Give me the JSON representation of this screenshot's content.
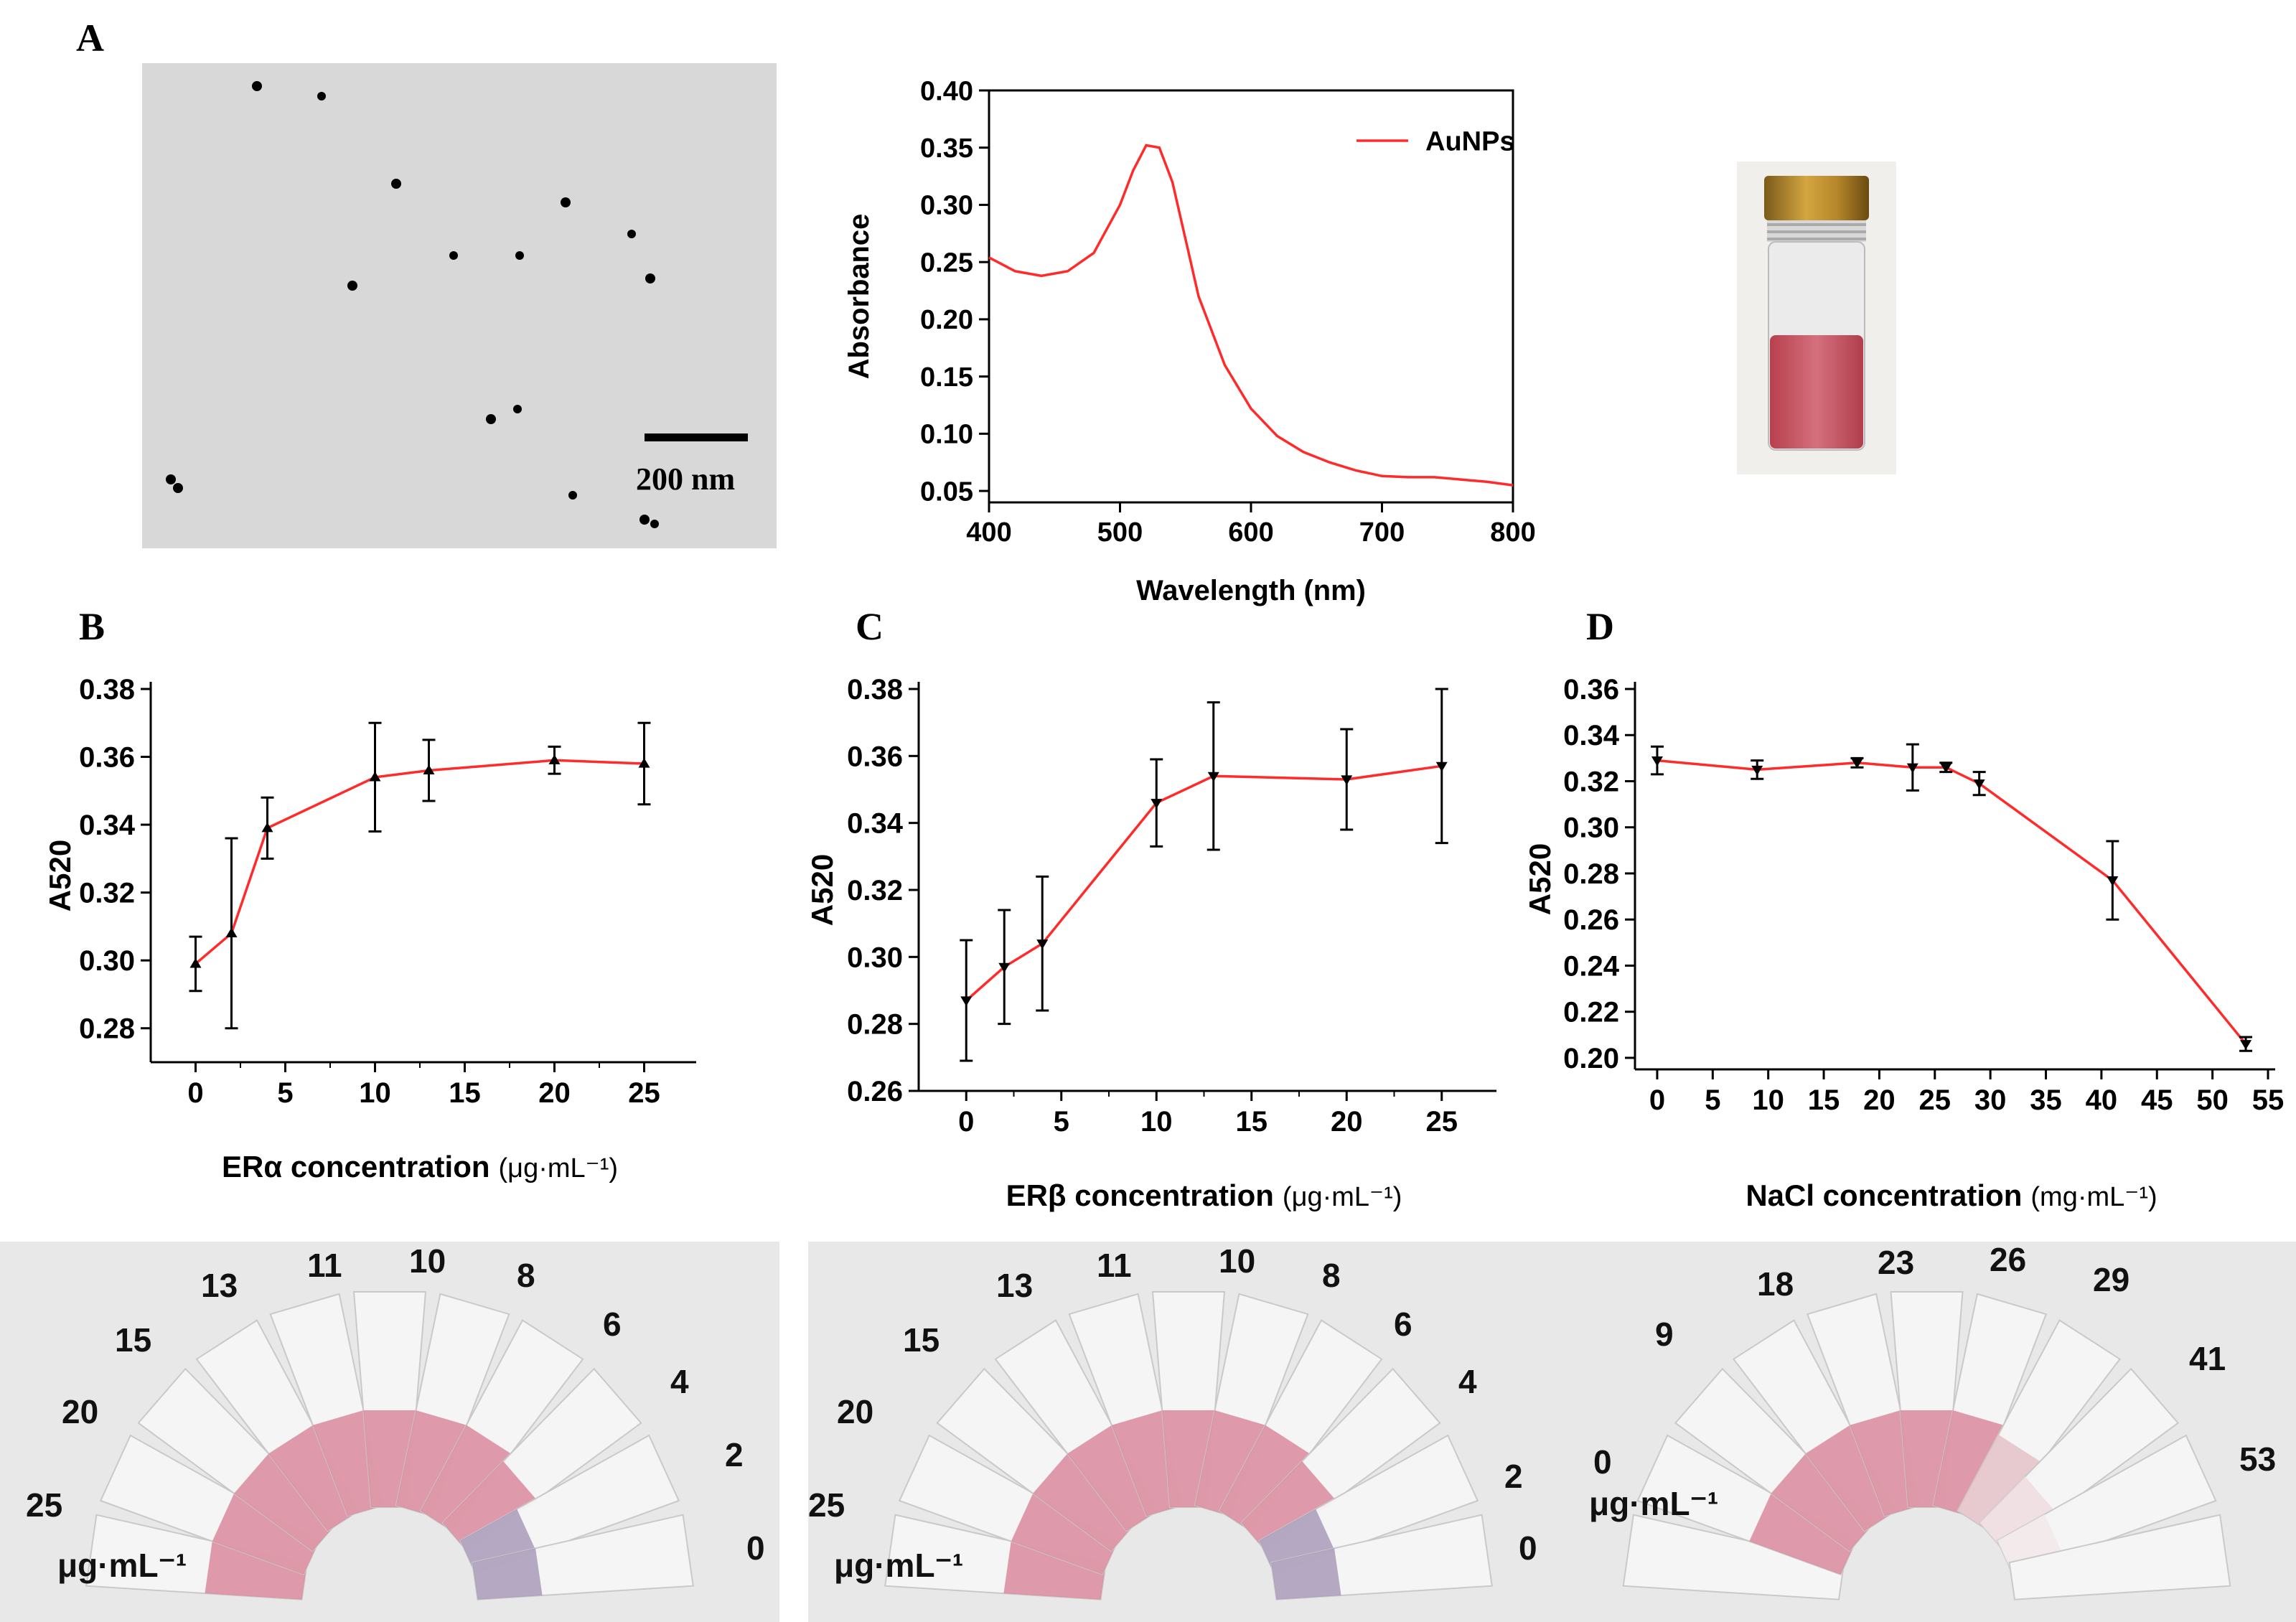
{
  "panels": {
    "A": "A",
    "B": "B",
    "C": "C",
    "D": "D"
  },
  "tem": {
    "scale_label": "200 nm"
  },
  "colors": {
    "line": "#ff2a2a",
    "axis": "#000000",
    "tube_pink": "#d98a9c",
    "tube_purple": "#a89ab8"
  },
  "chart_data": [
    {
      "id": "uv-vis",
      "type": "line",
      "title": "",
      "xlabel": "Wavelength (nm)",
      "ylabel": "Absorbance",
      "xlim": [
        400,
        800
      ],
      "ylim": [
        0.04,
        0.4
      ],
      "xticks": [
        400,
        500,
        600,
        700,
        800
      ],
      "yticks": [
        0.05,
        0.1,
        0.15,
        0.2,
        0.25,
        0.3,
        0.35,
        0.4
      ],
      "ytick_labels": [
        "0.05",
        "0.10",
        "0.15",
        "0.20",
        "0.25",
        "0.30",
        "0.35",
        "0.40"
      ],
      "legend": "top-right",
      "series": [
        {
          "name": "AuNPs",
          "x": [
            400,
            420,
            440,
            460,
            480,
            500,
            510,
            520,
            530,
            540,
            550,
            560,
            580,
            600,
            620,
            640,
            660,
            680,
            700,
            720,
            740,
            760,
            780,
            800
          ],
          "y": [
            0.254,
            0.242,
            0.238,
            0.242,
            0.258,
            0.3,
            0.33,
            0.352,
            0.35,
            0.32,
            0.27,
            0.22,
            0.16,
            0.122,
            0.098,
            0.084,
            0.075,
            0.068,
            0.063,
            0.062,
            0.062,
            0.06,
            0.058,
            0.055
          ]
        }
      ]
    },
    {
      "id": "era",
      "type": "line",
      "xlabel": "ERα concentration",
      "xunit": "(μg·mL⁻¹)",
      "ylabel": "A520",
      "xlim": [
        -2.5,
        27.5
      ],
      "ylim": [
        0.27,
        0.38
      ],
      "xticks": [
        0,
        5,
        10,
        15,
        20,
        25
      ],
      "yticks": [
        0.28,
        0.3,
        0.32,
        0.34,
        0.36,
        0.38
      ],
      "marker": "triangle-up",
      "series": [
        {
          "name": "ERα",
          "x": [
            0,
            2,
            4,
            10,
            13,
            20,
            25
          ],
          "y": [
            0.299,
            0.308,
            0.339,
            0.354,
            0.356,
            0.359,
            0.358
          ],
          "err": [
            0.008,
            0.028,
            0.009,
            0.016,
            0.009,
            0.004,
            0.012
          ]
        }
      ]
    },
    {
      "id": "erb",
      "type": "line",
      "xlabel": "ERβ concentration",
      "xunit": "(μg·mL⁻¹)",
      "ylabel": "A520",
      "xlim": [
        -2.5,
        27.5
      ],
      "ylim": [
        0.26,
        0.38
      ],
      "xticks": [
        0,
        5,
        10,
        15,
        20,
        25
      ],
      "yticks": [
        0.26,
        0.28,
        0.3,
        0.32,
        0.34,
        0.36,
        0.38
      ],
      "marker": "triangle-down",
      "series": [
        {
          "name": "ERβ",
          "x": [
            0,
            2,
            4,
            10,
            13,
            20,
            25
          ],
          "y": [
            0.287,
            0.297,
            0.304,
            0.346,
            0.354,
            0.353,
            0.357
          ],
          "err": [
            0.018,
            0.017,
            0.02,
            0.013,
            0.022,
            0.015,
            0.023
          ]
        }
      ]
    },
    {
      "id": "nacl",
      "type": "line",
      "xlabel": "NaCl concentration",
      "xunit": "(mg·mL⁻¹)",
      "ylabel": "A520",
      "xlim": [
        -2,
        55
      ],
      "ylim": [
        0.195,
        0.36
      ],
      "xticks": [
        0,
        5,
        10,
        15,
        20,
        25,
        30,
        35,
        40,
        45,
        50,
        55
      ],
      "yticks": [
        0.2,
        0.22,
        0.24,
        0.26,
        0.28,
        0.3,
        0.32,
        0.34,
        0.36
      ],
      "marker": "triangle-down",
      "series": [
        {
          "name": "NaCl",
          "x": [
            0,
            9,
            18,
            23,
            26,
            29,
            41,
            53
          ],
          "y": [
            0.329,
            0.325,
            0.328,
            0.326,
            0.326,
            0.319,
            0.277,
            0.206
          ],
          "err": [
            0.006,
            0.004,
            0.002,
            0.01,
            0.002,
            0.005,
            0.017,
            0.003
          ]
        }
      ]
    }
  ],
  "photos": {
    "era_labels": [
      "25",
      "20",
      "15",
      "13",
      "11",
      "10",
      "8",
      "6",
      "4",
      "2",
      "0"
    ],
    "erb_labels": [
      "25",
      "20",
      "15",
      "13",
      "11",
      "10",
      "8",
      "6",
      "4",
      "2",
      "0"
    ],
    "nacl_labels": [
      "0",
      "9",
      "18",
      "23",
      "26",
      "29",
      "41",
      "53"
    ],
    "unit_ug": "μg·mL⁻¹"
  }
}
